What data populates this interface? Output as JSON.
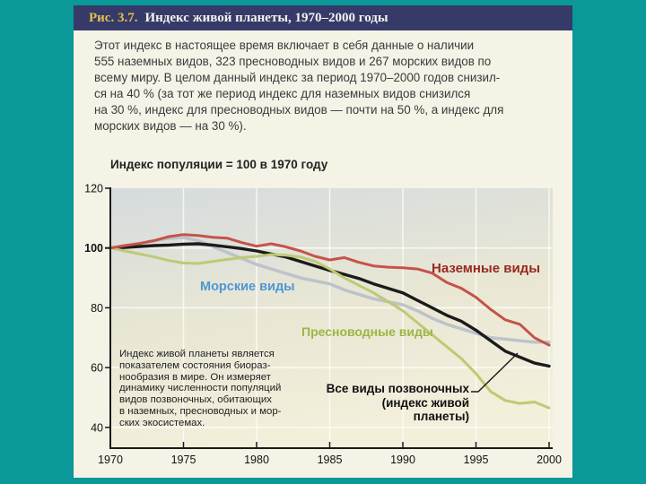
{
  "slide": {
    "figure_label": "Рис. 3.7.",
    "figure_title": "Индекс живой планеты, 1970–2000 годы"
  },
  "intro": {
    "lines": [
      "Этот индекс в настоящее время включает в себя данные о наличии",
      "555 наземных видов, 323 пресноводных видов и 267 морских видов по",
      "всему миру. В целом данный индекс за период 1970–2000 годов снизил-",
      "ся на 40 % (за тот же период индекс для наземных видов снизился",
      "на 30 %, индекс для пресноводных видов — почти на 50 %, а индекс для",
      "морских видов — на 30 %)."
    ]
  },
  "chart_data": {
    "type": "line",
    "title": "Индекс популяции = 100 в 1970 году",
    "x_start": 1970,
    "x_end": 2000,
    "xticks": [
      1970,
      1975,
      1980,
      1985,
      1990,
      1995,
      2000
    ],
    "yticks": [
      40,
      60,
      80,
      100,
      120
    ],
    "ylim": [
      33,
      120
    ],
    "grid": "white lines on gradient panel",
    "legend_position": "inline labels on plot",
    "colors": {
      "spine": "#1a1a1a",
      "grid": "#ffffff",
      "plot_bg_top": "#d5dbde",
      "plot_bg_mid": "#e9e7d4",
      "plot_bg_bottom": "#f2efdb"
    },
    "series": [
      {
        "id": "terrestrial",
        "name": "Наземные виды",
        "color": "#c5534a",
        "label_color": "#97291f",
        "values": [
          100,
          100.8,
          101.5,
          102.5,
          103.8,
          104.5,
          104.2,
          103.6,
          103.3,
          101.8,
          100.6,
          101.4,
          100.4,
          99,
          97.2,
          96,
          96.8,
          95.2,
          94,
          93.6,
          93.4,
          93,
          91.6,
          88.5,
          86.5,
          83.5,
          79.5,
          76,
          74.5,
          70,
          67.5
        ]
      },
      {
        "id": "marine",
        "name": "Морские виды",
        "color": "#bcc3ca",
        "label_color": "#4e97d4",
        "values": [
          100,
          100.8,
          101.6,
          102.4,
          103.2,
          103.5,
          102.5,
          100.5,
          98.5,
          96.5,
          94.5,
          93,
          91.5,
          90,
          89,
          88,
          86,
          84.5,
          83,
          82,
          81,
          79,
          76.5,
          74.5,
          73,
          71.5,
          70,
          69.5,
          69,
          68.5,
          68.5
        ]
      },
      {
        "id": "freshwater",
        "name": "Пресноводные виды",
        "color": "#bdca74",
        "label_color": "#9cb544",
        "values": [
          100,
          99,
          98,
          97,
          95.8,
          95,
          94.8,
          95.5,
          96.2,
          96.8,
          97.2,
          97.8,
          97.6,
          97,
          95.5,
          93,
          90,
          87.5,
          85,
          82,
          79,
          75,
          71,
          67,
          63,
          58,
          52,
          49,
          48,
          48.5,
          46.5
        ]
      },
      {
        "id": "all-vertebrates",
        "name": "Все виды позвоночных (индекс живой планеты)",
        "color": "#1b1b1b",
        "label_color": "#111111",
        "values": [
          100,
          100.2,
          100.5,
          100.8,
          101,
          101.3,
          101.4,
          101,
          100.4,
          99.8,
          99,
          98,
          97,
          95.5,
          94,
          92.5,
          91.2,
          89.8,
          88,
          86.5,
          85,
          82.5,
          80,
          77.5,
          75.5,
          72.5,
          69,
          65.5,
          63.5,
          61.5,
          60.5
        ]
      }
    ],
    "lpi_label_lines": [
      "Все виды позвоночных",
      "(индекс живой",
      "планеты)"
    ],
    "annotation_lines": [
      "Индекс живой планеты является",
      "показателем состояния биораз-",
      "нообразия в мире. Он измеряет",
      "динамику численности популяций",
      "видов позвоночных, обитающих",
      "в наземных, пресноводных и мор-",
      "ских экосистемах."
    ]
  }
}
